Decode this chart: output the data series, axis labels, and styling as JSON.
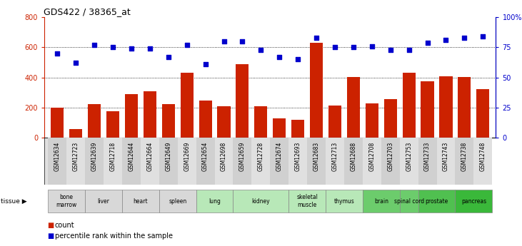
{
  "title": "GDS422 / 38365_at",
  "gsm_labels": [
    "GSM12634",
    "GSM12723",
    "GSM12639",
    "GSM12718",
    "GSM12644",
    "GSM12664",
    "GSM12649",
    "GSM12669",
    "GSM12654",
    "GSM12698",
    "GSM12659",
    "GSM12728",
    "GSM12674",
    "GSM12693",
    "GSM12683",
    "GSM12713",
    "GSM12688",
    "GSM12708",
    "GSM12703",
    "GSM12753",
    "GSM12733",
    "GSM12743",
    "GSM12738",
    "GSM12748"
  ],
  "count_values": [
    200,
    60,
    225,
    175,
    290,
    310,
    225,
    430,
    245,
    210,
    490,
    210,
    130,
    120,
    630,
    215,
    405,
    230,
    255,
    430,
    375,
    410,
    405,
    325
  ],
  "percentile_values": [
    70,
    62,
    77,
    75,
    74,
    74,
    67,
    77,
    61,
    80,
    80,
    73,
    67,
    65,
    83,
    75,
    75,
    76,
    73,
    73,
    79,
    81,
    83,
    84
  ],
  "tissue_groups": [
    {
      "label": "bone\nmarrow",
      "start": 0,
      "end": 2,
      "color": "#d8d8d8"
    },
    {
      "label": "liver",
      "start": 2,
      "end": 4,
      "color": "#d8d8d8"
    },
    {
      "label": "heart",
      "start": 4,
      "end": 6,
      "color": "#d8d8d8"
    },
    {
      "label": "spleen",
      "start": 6,
      "end": 8,
      "color": "#d8d8d8"
    },
    {
      "label": "lung",
      "start": 8,
      "end": 10,
      "color": "#b8e8b8"
    },
    {
      "label": "kidney",
      "start": 10,
      "end": 13,
      "color": "#b8e8b8"
    },
    {
      "label": "skeletal\nmuscle",
      "start": 13,
      "end": 15,
      "color": "#b8e8b8"
    },
    {
      "label": "thymus",
      "start": 15,
      "end": 17,
      "color": "#b8e8b8"
    },
    {
      "label": "brain",
      "start": 17,
      "end": 19,
      "color": "#6ccc6c"
    },
    {
      "label": "spinal cord",
      "start": 19,
      "end": 20,
      "color": "#6ccc6c"
    },
    {
      "label": "prostate",
      "start": 20,
      "end": 22,
      "color": "#50c050"
    },
    {
      "label": "pancreas",
      "start": 22,
      "end": 24,
      "color": "#3ab83a"
    }
  ],
  "bar_color": "#cc2200",
  "dot_color": "#0000cc",
  "left_ylim": [
    0,
    800
  ],
  "right_ylim": [
    0,
    100
  ],
  "left_yticks": [
    0,
    200,
    400,
    600,
    800
  ],
  "right_yticks": [
    0,
    25,
    50,
    75,
    100
  ],
  "right_yticklabels": [
    "0",
    "25",
    "50",
    "75",
    "100%"
  ],
  "bg_color": "#ffffff",
  "legend_count_label": "count",
  "legend_pct_label": "percentile rank within the sample"
}
